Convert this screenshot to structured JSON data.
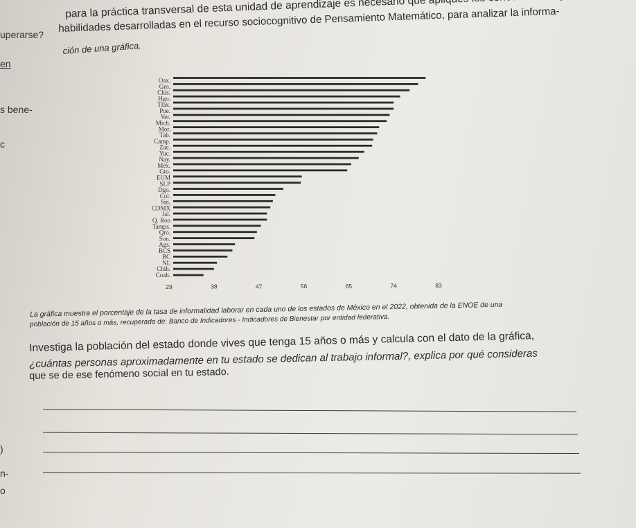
{
  "intro": {
    "line1": "para la práctica transversal de esta unidad de aprendizaje es necesario que apliques los conocimientos y",
    "line2": "habilidades desarrolladas en el recurso sociocognitivo de Pensamiento Matemático, para analizar la informa-",
    "line3": "ción de una gráfica."
  },
  "left_margin": {
    "l1": "uperarse?",
    "l2": "en",
    "l3": "s bene-",
    "l4": "c",
    "l5": ")",
    "l6": "n-",
    "l7": "o"
  },
  "chart_data": {
    "type": "bar",
    "orientation": "horizontal",
    "categories": [
      "Oax.",
      "Gro.",
      "Chis.",
      "Hgo.",
      "Tlax.",
      "Pue.",
      "Ver.",
      "Mich.",
      "Mor.",
      "Tab.",
      "Camp.",
      "Zac.",
      "Yuc.",
      "Nay.",
      "Méx.",
      "Gto.",
      "EUM",
      "SLP",
      "Dgo.",
      "Col.",
      "Sin.",
      "CDMX",
      "Jal.",
      "Q. Roo",
      "Tamps.",
      "Qro.",
      "Son.",
      "Ags.",
      "BCS",
      "BC",
      "NL",
      "Chih.",
      "Coah."
    ],
    "values": [
      80.4,
      78.9,
      77.2,
      75.3,
      74.0,
      74.0,
      73.2,
      72.6,
      71.1,
      70.7,
      69.9,
      69.7,
      68.1,
      67.0,
      65.5,
      64.7,
      55.6,
      55.4,
      51.9,
      50.3,
      49.8,
      49.3,
      48.6,
      48.6,
      47.4,
      46.6,
      46.1,
      42.2,
      41.7,
      40.7,
      38.6,
      38.0,
      35.9
    ],
    "x_ticks": [
      "29",
      "38",
      "47",
      "56",
      "65",
      "74",
      "83"
    ],
    "xlim": [
      29,
      83
    ],
    "bar_color": "#2b2b2b"
  },
  "caption": {
    "line1": "La gráfica muestra el porcentaje de la tasa de informalidad laborar en cada uno de los estados de México en el 2022, obtenida de la ENOE de una",
    "line2": "población de 15 años o más, recuperada de: Banco de Indicadores - Indicadores de Bienestar por entidad federativa."
  },
  "question": {
    "line1": "Investiga la población del estado donde vives que tenga 15 años o más y calcula con el dato de la gráfica,",
    "line2": "¿cuántas personas aproximadamente en tu estado se dedican al trabajo informal?, explica por qué consideras",
    "line3": "que se de ese fenómeno social en tu estado."
  }
}
